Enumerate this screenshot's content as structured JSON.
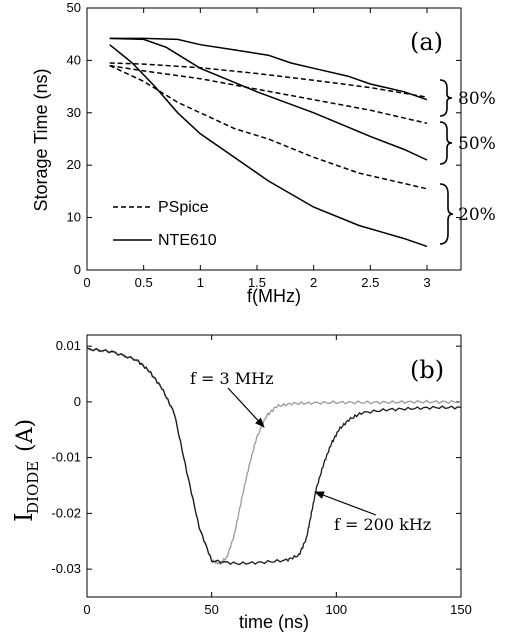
{
  "chart_data": [
    {
      "panel": "(a)",
      "type": "line",
      "xlabel": "f(MHz)",
      "ylabel": "Storage Time (ns)",
      "xlim": [
        0,
        3.3
      ],
      "ylim": [
        0,
        50
      ],
      "xticks": [
        "0",
        "0.5",
        "1",
        "1.5",
        "2",
        "2.5",
        "3"
      ],
      "yticks": [
        "0",
        "10",
        "20",
        "30",
        "40",
        "50"
      ],
      "legend": {
        "position": "bottom-left",
        "entries": [
          {
            "name": "PSpice",
            "style": "dashed"
          },
          {
            "name": "NTE610",
            "style": "solid"
          }
        ]
      },
      "group_labels": [
        "80%",
        "50%",
        "20%"
      ],
      "series": [
        {
          "group": "80%",
          "source": "PSpice",
          "style": "dashed",
          "x": [
            0.2,
            0.5,
            1.0,
            1.5,
            2.0,
            2.5,
            3.0
          ],
          "y": [
            39.5,
            39.3,
            38.6,
            37.5,
            36.2,
            34.8,
            33.0
          ]
        },
        {
          "group": "80%",
          "source": "NTE610",
          "style": "solid",
          "x": [
            0.2,
            0.5,
            0.8,
            1.0,
            1.3,
            1.6,
            1.8,
            2.0,
            2.3,
            2.5,
            2.8,
            3.0
          ],
          "y": [
            44.2,
            44.2,
            44.0,
            43.0,
            42.0,
            41.0,
            39.5,
            38.5,
            37.0,
            35.5,
            34.0,
            32.5
          ]
        },
        {
          "group": "50%",
          "source": "PSpice",
          "style": "dashed",
          "x": [
            0.2,
            0.5,
            1.0,
            1.5,
            2.0,
            2.5,
            3.0
          ],
          "y": [
            39.0,
            38.0,
            36.5,
            34.5,
            32.5,
            30.5,
            28.0
          ]
        },
        {
          "group": "50%",
          "source": "NTE610",
          "style": "solid",
          "x": [
            0.2,
            0.5,
            0.7,
            1.0,
            1.5,
            2.0,
            2.5,
            2.8,
            3.0
          ],
          "y": [
            44.2,
            44.0,
            42.5,
            38.5,
            34.0,
            30.0,
            25.5,
            23.0,
            21.0
          ]
        },
        {
          "group": "20%",
          "source": "PSpice",
          "style": "dashed",
          "x": [
            0.2,
            0.5,
            0.8,
            1.0,
            1.3,
            1.6,
            2.0,
            2.4,
            2.8,
            3.0
          ],
          "y": [
            39.0,
            36.0,
            32.0,
            30.0,
            27.0,
            25.0,
            21.5,
            18.5,
            16.5,
            15.5
          ]
        },
        {
          "group": "20%",
          "source": "NTE610",
          "style": "solid",
          "x": [
            0.2,
            0.4,
            0.6,
            0.8,
            1.0,
            1.3,
            1.6,
            2.0,
            2.4,
            2.8,
            3.0
          ],
          "y": [
            43.0,
            39.5,
            35.0,
            30.0,
            26.0,
            21.5,
            17.0,
            12.0,
            8.5,
            6.0,
            4.5
          ]
        }
      ]
    },
    {
      "panel": "(b)",
      "type": "line",
      "xlabel": "time (ns)",
      "ylabel_main": "I",
      "ylabel_sub": "DIODE",
      "ylabel_tail": "(A)",
      "xlim": [
        0,
        150
      ],
      "ylim": [
        -0.035,
        0.012
      ],
      "xticks": [
        "0",
        "50",
        "100",
        "150"
      ],
      "yticks": [
        "0.01",
        "0",
        "-0.01",
        "-0.02",
        "-0.03"
      ],
      "series": [
        {
          "name": "f = 3 MHz",
          "color": "#9a9a9a",
          "x": [
            0,
            10,
            20,
            25,
            30,
            35,
            40,
            45,
            50,
            53,
            56,
            59,
            62,
            65,
            68,
            72,
            76,
            82,
            90,
            100,
            110,
            120,
            130,
            140,
            150
          ],
          "y": [
            0.0095,
            0.009,
            0.0075,
            0.0055,
            0.0025,
            -0.002,
            -0.0125,
            -0.0225,
            -0.0285,
            -0.029,
            -0.028,
            -0.024,
            -0.0175,
            -0.0115,
            -0.0065,
            -0.0025,
            -0.0008,
            -0.0003,
            -0.0002,
            -0.0001,
            -0.0001,
            -0.0001,
            0.0,
            0.0,
            0.0
          ]
        },
        {
          "name": "f = 200 kHz",
          "color": "#1a1a1a",
          "x": [
            0,
            10,
            20,
            25,
            30,
            35,
            40,
            45,
            50,
            60,
            70,
            80,
            85,
            88,
            90,
            92,
            95,
            98,
            101,
            105,
            110,
            120,
            130,
            140,
            150
          ],
          "y": [
            0.0095,
            0.009,
            0.0075,
            0.0055,
            0.0025,
            -0.002,
            -0.0125,
            -0.0225,
            -0.0285,
            -0.029,
            -0.0288,
            -0.0284,
            -0.0275,
            -0.0245,
            -0.02,
            -0.0155,
            -0.011,
            -0.0075,
            -0.005,
            -0.0032,
            -0.002,
            -0.0014,
            -0.0012,
            -0.001,
            -0.001
          ]
        }
      ],
      "annotations": [
        "f = 3 MHz",
        "f = 200 kHz"
      ]
    }
  ]
}
